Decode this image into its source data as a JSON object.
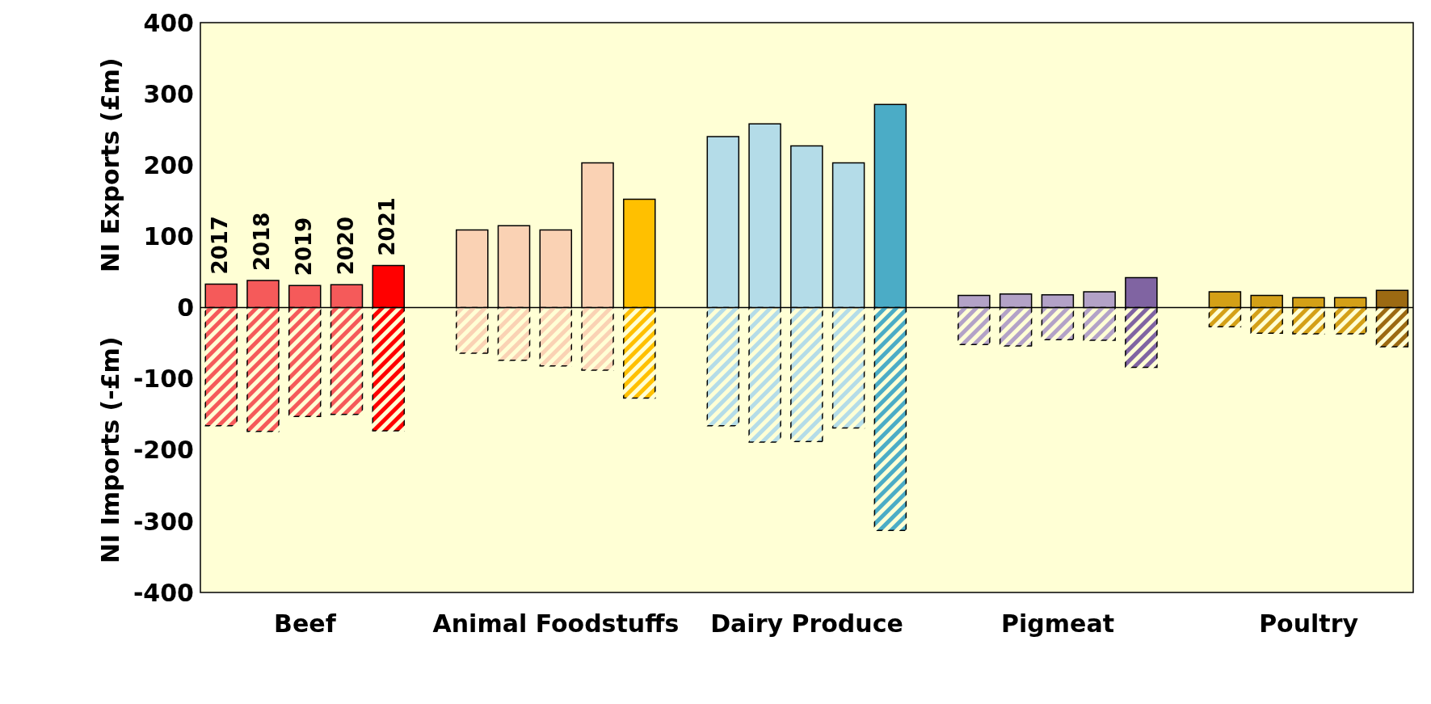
{
  "chart_data": {
    "type": "bar",
    "stacked": true,
    "ylabel": "NI Exports (£m)",
    "annotations": [
      "NI Imports (-£m)",
      "2017",
      "2018",
      "2019",
      "2020",
      "2021"
    ],
    "categories": [
      null,
      null,
      "Beef",
      null,
      null,
      null,
      null,
      null,
      "Animal Foodstuffs",
      null,
      null,
      null,
      null,
      null,
      "Dairy Produce",
      null,
      null,
      null,
      null,
      null,
      "Pigmeat",
      null,
      null,
      null,
      null,
      null,
      "Poultry",
      null,
      null
    ],
    "ylim": [
      -400,
      400
    ],
    "yticks": [
      -400,
      -300,
      -200,
      -100,
      0,
      100,
      200,
      300,
      400
    ],
    "grid": false,
    "legend": false,
    "ref_lines": [
      {
        "axis": "y",
        "value": 0,
        "color": "#000000"
      }
    ],
    "series": [
      {
        "colors": [
          "#f55a5a",
          "#f55a5a",
          "#f55a5a",
          "#f55a5a",
          "#ff0000",
          null,
          "#fad2b4",
          "#fad2b4",
          "#fad2b4",
          "#fad2b4",
          "#ffc000",
          null,
          "#b4dce8",
          "#b4dce8",
          "#b4dce8",
          "#b4dce8",
          "#4bacc6",
          null,
          "#b3a2c7",
          "#b3a2c7",
          "#b3a2c7",
          "#b3a2c7",
          "#8064a2",
          null,
          "#d4a017",
          "#d4a017",
          "#d4a017",
          "#d4a017",
          "#9c6a12"
        ],
        "values": [
          33,
          38,
          31,
          32,
          59,
          null,
          109,
          115,
          109,
          203,
          152,
          null,
          240,
          258,
          227,
          203,
          285,
          null,
          17,
          19,
          18,
          22,
          42,
          null,
          22,
          17,
          14,
          14,
          24
        ]
      },
      {
        "colors": [
          "#f55a5a",
          "#f55a5a",
          "#f55a5a",
          "#f55a5a",
          "#ff0000",
          null,
          "#fad2b4",
          "#fad2b4",
          "#fad2b4",
          "#fad2b4",
          "#ffc000",
          null,
          "#b4dce8",
          "#b4dce8",
          "#b4dce8",
          "#b4dce8",
          "#4bacc6",
          null,
          "#b3a2c7",
          "#b3a2c7",
          "#b3a2c7",
          "#b3a2c7",
          "#8064a2",
          null,
          "#d4a017",
          "#d4a017",
          "#d4a017",
          "#d4a017",
          "#9c6a12"
        ],
        "values": [
          -166,
          -174,
          -153,
          -150,
          -173,
          null,
          -64,
          -74,
          -82,
          -88,
          -127,
          null,
          -166,
          -189,
          -188,
          -169,
          -313,
          null,
          -52,
          -54,
          -45,
          -46,
          -84,
          null,
          -27,
          -36,
          -37,
          -37,
          -55
        ]
      }
    ]
  }
}
